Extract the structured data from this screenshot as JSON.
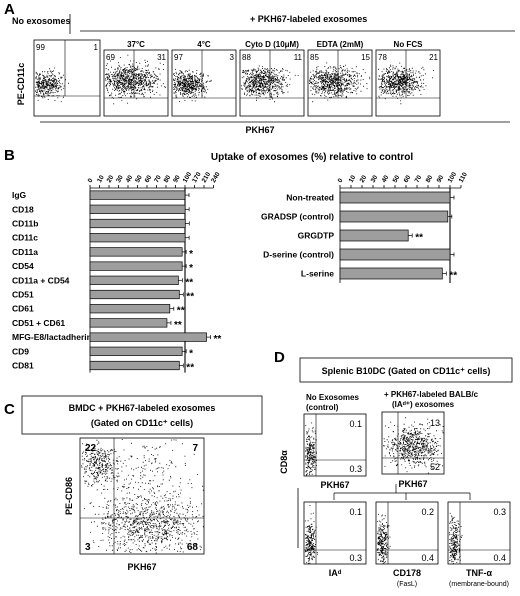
{
  "panel_a": {
    "letter": "A",
    "no_exo_header": "No exosomes",
    "pkh_header": "+ PKH67-labeled exosomes",
    "y_label": "PE-CD11c",
    "x_label": "PKH67",
    "plots": [
      {
        "title": "",
        "ul": "99",
        "ur": "1"
      },
      {
        "title": "37°C",
        "ul": "69",
        "ur": "31"
      },
      {
        "title": "4°C",
        "ul": "97",
        "ur": "3"
      },
      {
        "title": "Cyto D (10μM)",
        "ul": "88",
        "ur": "11"
      },
      {
        "title": "EDTA (2mM)",
        "ul": "85",
        "ur": "15"
      },
      {
        "title": "No FCS",
        "ul": "78",
        "ur": "21"
      }
    ]
  },
  "panel_b": {
    "letter": "B",
    "title": "Uptake of exosomes (%) relative to control"
  },
  "chart_data": [
    {
      "type": "bar",
      "orientation": "horizontal",
      "xlim": [
        0,
        240
      ],
      "x_ticks": [
        "0",
        "10",
        "20",
        "30",
        "40",
        "50",
        "60",
        "70",
        "80",
        "90",
        "100",
        "170",
        "210",
        "240"
      ],
      "categories": [
        "IgG",
        "CD18",
        "CD11b",
        "CD11c",
        "CD11a",
        "CD54",
        "CD11a + CD54",
        "CD51",
        "CD61",
        "CD51 + CD61",
        "MFG-E8/lactadherin",
        "CD9",
        "CD81"
      ],
      "values": [
        100,
        101,
        102,
        101,
        97,
        97,
        93,
        94,
        84,
        81,
        218,
        97,
        94
      ],
      "significance": [
        "",
        "",
        "",
        "",
        "*",
        "*",
        "**",
        "**",
        "**",
        "**",
        "**",
        "*",
        "**"
      ],
      "grid": false
    },
    {
      "type": "bar",
      "orientation": "horizontal",
      "xlim": [
        0,
        110
      ],
      "x_ticks": [
        "0",
        "10",
        "20",
        "30",
        "40",
        "50",
        "60",
        "70",
        "80",
        "90",
        "100",
        "110"
      ],
      "categories": [
        "Non-treated",
        "GRADSP (control)",
        "GRGDTP",
        "D-serine (control)",
        "L-serine"
      ],
      "values": [
        100,
        98,
        62,
        100,
        93
      ],
      "significance": [
        "",
        "",
        "**",
        "",
        "**"
      ],
      "grid": false
    }
  ],
  "panel_c": {
    "letter": "C",
    "box_line1": "BMDC + PKH67-labeled exosomes",
    "box_line2": "(Gated on CD11c⁺ cells)",
    "y_label": "PE-CD86",
    "x_label": "PKH67",
    "ul": "22",
    "ur": "7",
    "ll": "3",
    "lr": "68"
  },
  "panel_d": {
    "letter": "D",
    "box_title": "Splenic B10DC (Gated on CD11c⁺ cells)",
    "y_label": "CD8α",
    "plot1_title_1": "No Exosomes",
    "plot1_title_2": "(control)",
    "plot2_title_1": "+ PKH67-labeled BALB/c",
    "plot2_title_2": "(IAᵈ⁺) exosomes",
    "top_plots": [
      {
        "x_label": "PKH67",
        "ur": "0.1",
        "lr": "0.3"
      },
      {
        "x_label": "PKH67",
        "ur": "13",
        "lr": "52"
      }
    ],
    "bottom_plots": [
      {
        "x_label": "IAᵈ",
        "sub": "",
        "ur": "0.1",
        "lr": "0.3"
      },
      {
        "x_label": "CD178",
        "sub": "(FasL)",
        "ur": "0.2",
        "lr": "0.4"
      },
      {
        "x_label": "TNF-α",
        "sub": "(membrane-bound)",
        "ur": "0.3",
        "lr": "0.4"
      }
    ]
  }
}
